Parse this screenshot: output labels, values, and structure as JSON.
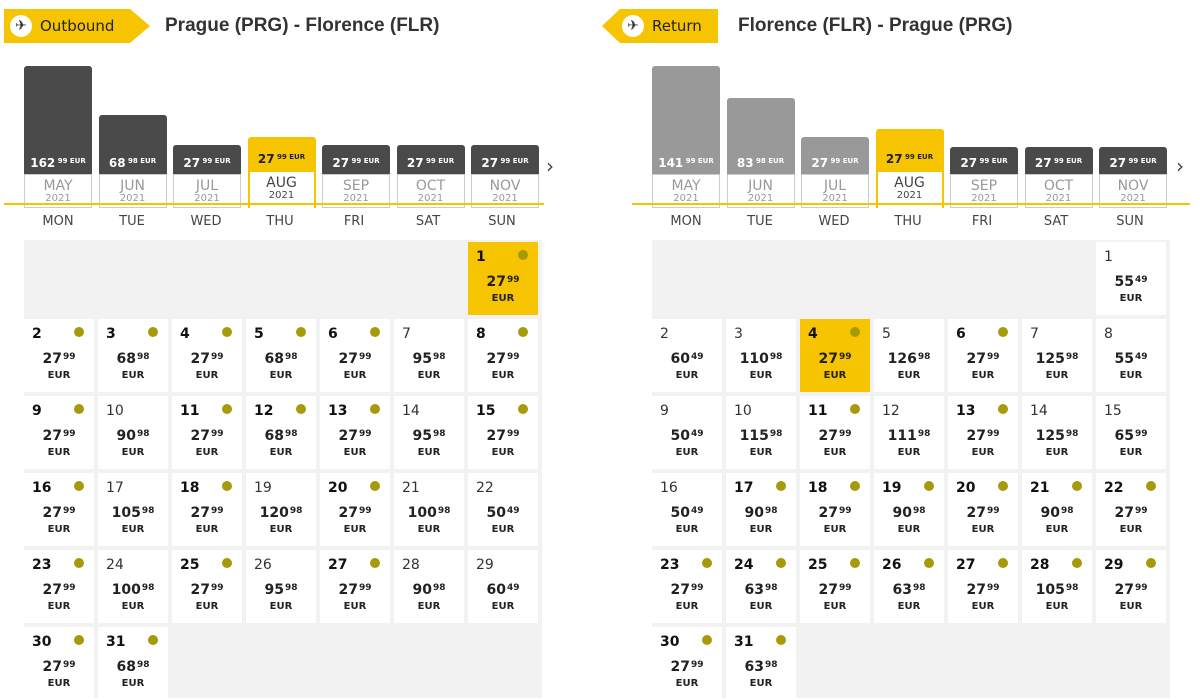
{
  "outbound": {
    "tag_label": "Outbound",
    "route": "Prague (PRG) - Florence (FLR)",
    "active_month": 3,
    "months": [
      {
        "month": "MAY",
        "year": "2021",
        "price_main": "162",
        "price_cents": "99 EUR",
        "bar": 1.0
      },
      {
        "month": "JUN",
        "year": "2021",
        "price_main": "68",
        "price_cents": "98 EUR",
        "bar": 0.55
      },
      {
        "month": "JUL",
        "year": "2021",
        "price_main": "27",
        "price_cents": "99 EUR",
        "bar": 0.27
      },
      {
        "month": "AUG",
        "year": "2021",
        "price_main": "27",
        "price_cents": "99 EUR",
        "bar": 0.27
      },
      {
        "month": "SEP",
        "year": "2021",
        "price_main": "27",
        "price_cents": "99 EUR",
        "bar": 0.27
      },
      {
        "month": "OCT",
        "year": "2021",
        "price_main": "27",
        "price_cents": "99 EUR",
        "bar": 0.27
      },
      {
        "month": "NOV",
        "year": "2021",
        "price_main": "27",
        "price_cents": "99 EUR",
        "bar": 0.27
      }
    ],
    "start_col": 6,
    "selected_day": 1,
    "days": [
      {
        "d": "1",
        "p": "27",
        "c": "99",
        "dot": true
      },
      {
        "d": "2",
        "p": "27",
        "c": "99",
        "dot": true
      },
      {
        "d": "3",
        "p": "68",
        "c": "98",
        "dot": true
      },
      {
        "d": "4",
        "p": "27",
        "c": "99",
        "dot": true
      },
      {
        "d": "5",
        "p": "68",
        "c": "98",
        "dot": true
      },
      {
        "d": "6",
        "p": "27",
        "c": "99",
        "dot": true
      },
      {
        "d": "7",
        "p": "95",
        "c": "98",
        "dot": false
      },
      {
        "d": "8",
        "p": "27",
        "c": "99",
        "dot": true
      },
      {
        "d": "9",
        "p": "27",
        "c": "99",
        "dot": true
      },
      {
        "d": "10",
        "p": "90",
        "c": "98",
        "dot": false
      },
      {
        "d": "11",
        "p": "27",
        "c": "99",
        "dot": true
      },
      {
        "d": "12",
        "p": "68",
        "c": "98",
        "dot": true
      },
      {
        "d": "13",
        "p": "27",
        "c": "99",
        "dot": true
      },
      {
        "d": "14",
        "p": "95",
        "c": "98",
        "dot": false
      },
      {
        "d": "15",
        "p": "27",
        "c": "99",
        "dot": true
      },
      {
        "d": "16",
        "p": "27",
        "c": "99",
        "dot": true
      },
      {
        "d": "17",
        "p": "105",
        "c": "98",
        "dot": false
      },
      {
        "d": "18",
        "p": "27",
        "c": "99",
        "dot": true
      },
      {
        "d": "19",
        "p": "120",
        "c": "98",
        "dot": false
      },
      {
        "d": "20",
        "p": "27",
        "c": "99",
        "dot": true
      },
      {
        "d": "21",
        "p": "100",
        "c": "98",
        "dot": false
      },
      {
        "d": "22",
        "p": "50",
        "c": "49",
        "dot": false
      },
      {
        "d": "23",
        "p": "27",
        "c": "99",
        "dot": true
      },
      {
        "d": "24",
        "p": "100",
        "c": "98",
        "dot": false
      },
      {
        "d": "25",
        "p": "27",
        "c": "99",
        "dot": true
      },
      {
        "d": "26",
        "p": "95",
        "c": "98",
        "dot": false
      },
      {
        "d": "27",
        "p": "27",
        "c": "99",
        "dot": true
      },
      {
        "d": "28",
        "p": "90",
        "c": "98",
        "dot": false
      },
      {
        "d": "29",
        "p": "60",
        "c": "49",
        "dot": false
      },
      {
        "d": "30",
        "p": "27",
        "c": "99",
        "dot": true
      },
      {
        "d": "31",
        "p": "68",
        "c": "98",
        "dot": true
      }
    ]
  },
  "return": {
    "tag_label": "Return",
    "route": "Florence (FLR) - Prague (PRG)",
    "active_month": 3,
    "months": [
      {
        "month": "MAY",
        "year": "2021",
        "price_main": "141",
        "price_cents": "99 EUR",
        "bar": 1.0
      },
      {
        "month": "JUN",
        "year": "2021",
        "price_main": "83",
        "price_cents": "98 EUR",
        "bar": 0.7
      },
      {
        "month": "JUL",
        "year": "2021",
        "price_main": "27",
        "price_cents": "99 EUR",
        "bar": 0.34
      },
      {
        "month": "AUG",
        "year": "2021",
        "price_main": "27",
        "price_cents": "99 EUR",
        "bar": 0.34
      },
      {
        "month": "SEP",
        "year": "2021",
        "price_main": "27",
        "price_cents": "99 EUR",
        "bar": 0.25
      },
      {
        "month": "OCT",
        "year": "2021",
        "price_main": "27",
        "price_cents": "99 EUR",
        "bar": 0.25
      },
      {
        "month": "NOV",
        "year": "2021",
        "price_main": "27",
        "price_cents": "99 EUR",
        "bar": 0.25
      }
    ],
    "faded_months": [
      0,
      1,
      2
    ],
    "start_col": 6,
    "selected_day": 4,
    "days": [
      {
        "d": "1",
        "p": "55",
        "c": "49",
        "dot": false
      },
      {
        "d": "2",
        "p": "60",
        "c": "49",
        "dot": false
      },
      {
        "d": "3",
        "p": "110",
        "c": "98",
        "dot": false
      },
      {
        "d": "4",
        "p": "27",
        "c": "99",
        "dot": true
      },
      {
        "d": "5",
        "p": "126",
        "c": "98",
        "dot": false
      },
      {
        "d": "6",
        "p": "27",
        "c": "99",
        "dot": true
      },
      {
        "d": "7",
        "p": "125",
        "c": "98",
        "dot": false
      },
      {
        "d": "8",
        "p": "55",
        "c": "49",
        "dot": false
      },
      {
        "d": "9",
        "p": "50",
        "c": "49",
        "dot": false
      },
      {
        "d": "10",
        "p": "115",
        "c": "98",
        "dot": false
      },
      {
        "d": "11",
        "p": "27",
        "c": "99",
        "dot": true
      },
      {
        "d": "12",
        "p": "111",
        "c": "98",
        "dot": false
      },
      {
        "d": "13",
        "p": "27",
        "c": "99",
        "dot": true
      },
      {
        "d": "14",
        "p": "125",
        "c": "98",
        "dot": false
      },
      {
        "d": "15",
        "p": "65",
        "c": "99",
        "dot": false
      },
      {
        "d": "16",
        "p": "50",
        "c": "49",
        "dot": false
      },
      {
        "d": "17",
        "p": "90",
        "c": "98",
        "dot": true
      },
      {
        "d": "18",
        "p": "27",
        "c": "99",
        "dot": true
      },
      {
        "d": "19",
        "p": "90",
        "c": "98",
        "dot": true
      },
      {
        "d": "20",
        "p": "27",
        "c": "99",
        "dot": true
      },
      {
        "d": "21",
        "p": "90",
        "c": "98",
        "dot": true
      },
      {
        "d": "22",
        "p": "27",
        "c": "99",
        "dot": true
      },
      {
        "d": "23",
        "p": "27",
        "c": "99",
        "dot": true
      },
      {
        "d": "24",
        "p": "63",
        "c": "98",
        "dot": true
      },
      {
        "d": "25",
        "p": "27",
        "c": "99",
        "dot": true
      },
      {
        "d": "26",
        "p": "63",
        "c": "98",
        "dot": true
      },
      {
        "d": "27",
        "p": "27",
        "c": "99",
        "dot": true
      },
      {
        "d": "28",
        "p": "105",
        "c": "98",
        "dot": true
      },
      {
        "d": "29",
        "p": "27",
        "c": "99",
        "dot": true
      },
      {
        "d": "30",
        "p": "27",
        "c": "99",
        "dot": true
      },
      {
        "d": "31",
        "p": "63",
        "c": "98",
        "dot": true
      }
    ]
  },
  "weekdays": [
    "MON",
    "TUE",
    "WED",
    "THU",
    "FRI",
    "SAT",
    "SUN"
  ],
  "currency": "EUR",
  "icons": {
    "plane": "airplane-icon",
    "next": "chevron-right-icon"
  },
  "colors": {
    "accent": "#f6c400",
    "dot": "#a69a0a",
    "bar": "#4a4a4a"
  }
}
